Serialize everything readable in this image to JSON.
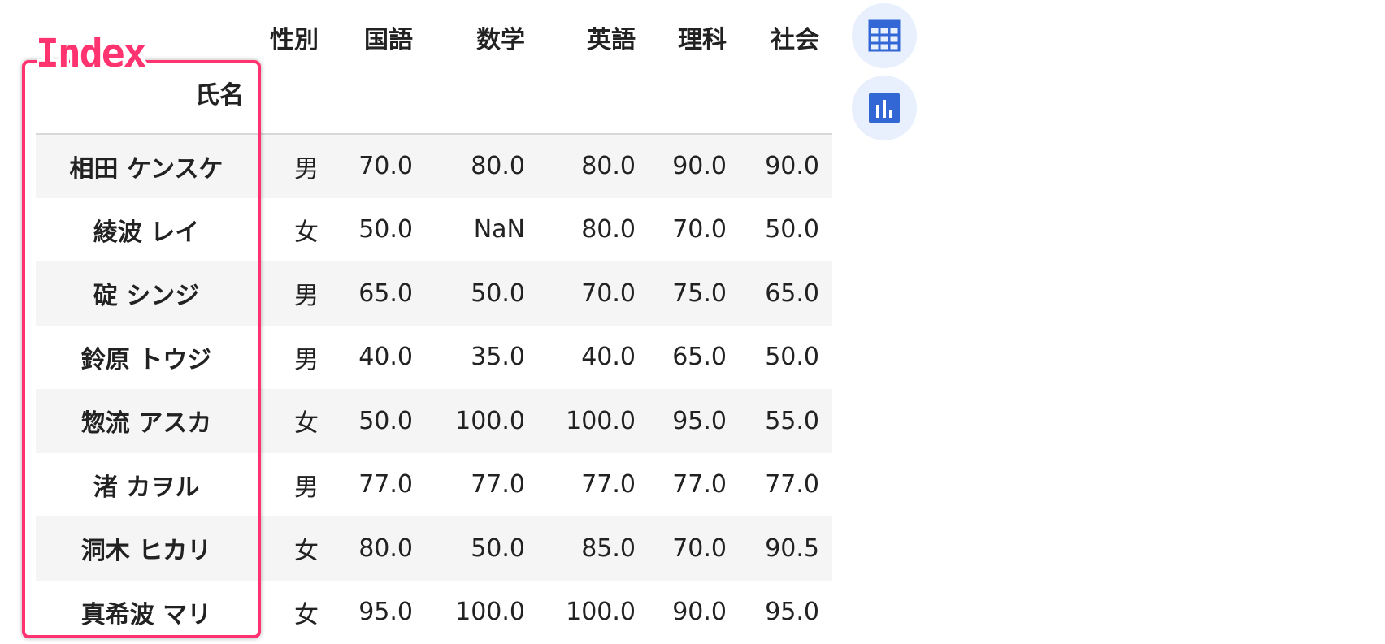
{
  "table": {
    "columns": [
      "性別",
      "国語",
      "数学",
      "英語",
      "理科",
      "社会"
    ],
    "index_name": "氏名",
    "rows": [
      {
        "name": "相田 ケンスケ",
        "values": [
          "男",
          "70.0",
          "80.0",
          "80.0",
          "90.0",
          "90.0"
        ]
      },
      {
        "name": "綾波 レイ",
        "values": [
          "女",
          "50.0",
          "NaN",
          "80.0",
          "70.0",
          "50.0"
        ]
      },
      {
        "name": "碇 シンジ",
        "values": [
          "男",
          "65.0",
          "50.0",
          "70.0",
          "75.0",
          "65.0"
        ]
      },
      {
        "name": "鈴原 トウジ",
        "values": [
          "男",
          "40.0",
          "35.0",
          "40.0",
          "65.0",
          "50.0"
        ]
      },
      {
        "name": "惣流 アスカ",
        "values": [
          "女",
          "50.0",
          "100.0",
          "100.0",
          "95.0",
          "55.0"
        ]
      },
      {
        "name": "渚 カヲル",
        "values": [
          "男",
          "77.0",
          "77.0",
          "77.0",
          "77.0",
          "77.0"
        ]
      },
      {
        "name": "洞木 ヒカリ",
        "values": [
          "女",
          "80.0",
          "50.0",
          "85.0",
          "70.0",
          "90.5"
        ]
      },
      {
        "name": "真希波 マリ",
        "values": [
          "女",
          "95.0",
          "100.0",
          "100.0",
          "90.0",
          "95.0"
        ]
      }
    ]
  },
  "annotation": {
    "label": "Index",
    "color": "#ff336f"
  },
  "toolbar": {
    "icons": [
      "table-icon",
      "bar-chart-icon"
    ],
    "accent": "#3367d6"
  }
}
